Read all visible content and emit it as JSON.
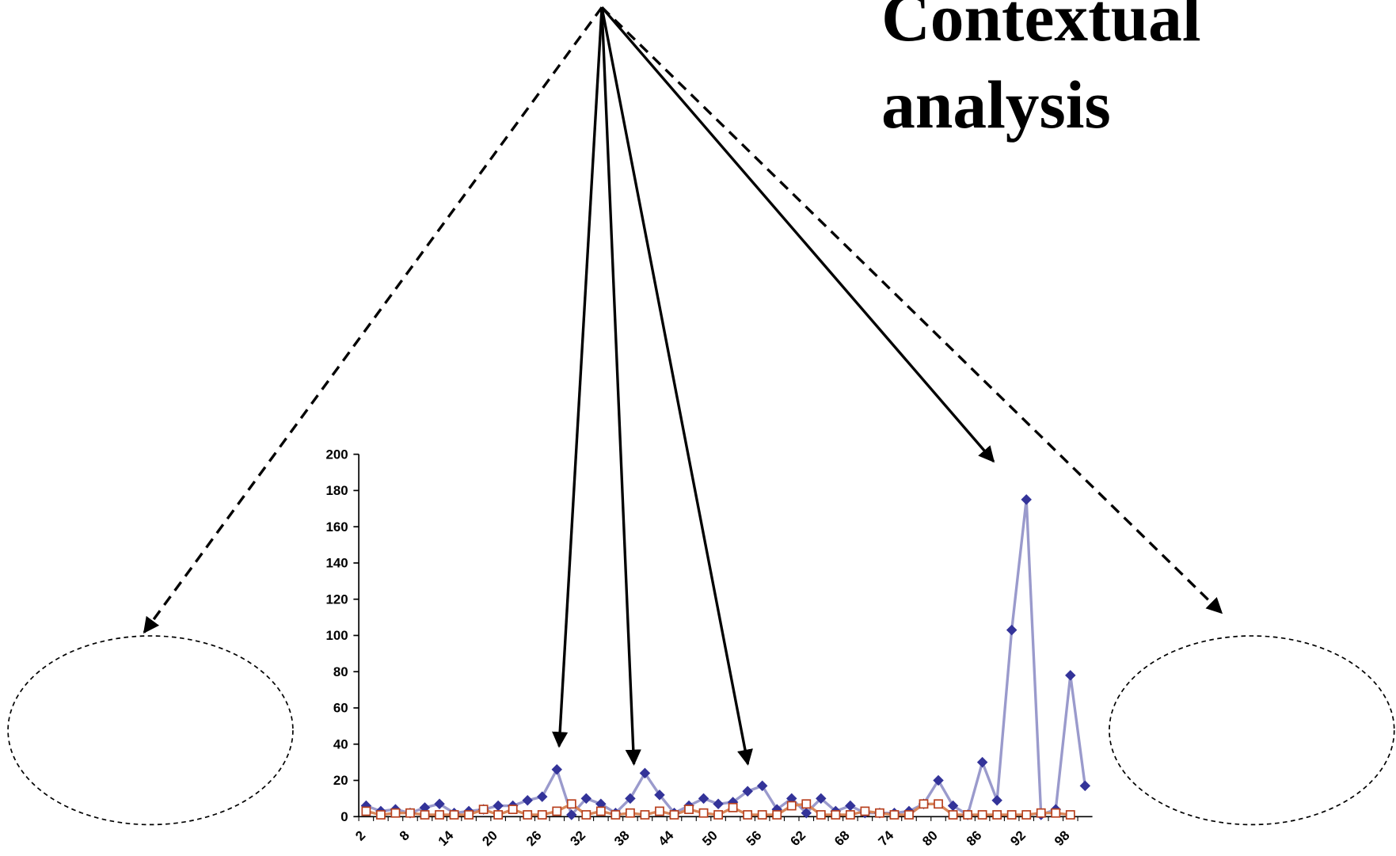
{
  "chart_data": {
    "type": "line",
    "annotations": [
      "Contextual",
      "analysis"
    ],
    "categories": [
      2,
      null,
      null,
      8,
      null,
      null,
      14,
      null,
      null,
      20,
      null,
      null,
      26,
      null,
      null,
      32,
      null,
      null,
      38,
      null,
      null,
      44,
      null,
      null,
      50,
      null,
      null,
      56,
      null,
      null,
      62,
      null,
      null,
      68,
      null,
      null,
      74,
      null,
      null,
      80,
      null,
      null,
      86,
      null,
      null,
      92,
      null,
      null,
      98,
      null
    ],
    "series": [
      {
        "color": "#333399",
        "line_color": "#9a9acc",
        "marker": "diamond",
        "values": [
          6,
          3,
          4,
          2,
          5,
          7,
          2,
          3,
          4,
          6,
          6,
          9,
          11,
          26,
          1,
          10,
          7,
          2,
          10,
          24,
          12,
          2,
          6,
          10,
          7,
          8,
          14,
          17,
          4,
          10,
          2,
          10,
          3,
          6,
          2,
          2,
          2,
          3,
          7,
          20,
          6,
          1,
          30,
          9,
          103,
          175,
          1,
          4,
          78,
          17
        ]
      },
      {
        "color": "#b8401e",
        "line_color": "#d9875a",
        "marker": "square",
        "values": [
          3,
          1,
          2,
          2,
          1,
          1,
          1,
          1,
          4,
          1,
          4,
          1,
          1,
          3,
          7,
          1,
          3,
          1,
          2,
          1,
          3,
          1,
          4,
          2,
          1,
          5,
          1,
          1,
          1,
          6,
          7,
          1,
          1,
          1,
          3,
          2,
          1,
          1,
          7,
          7,
          1,
          1,
          1,
          1,
          1,
          1,
          2,
          2,
          1,
          null
        ]
      }
    ],
    "ylim": [
      0,
      200
    ],
    "yticks": [
      0,
      20,
      40,
      60,
      80,
      100,
      120,
      140,
      160,
      180,
      200
    ]
  }
}
